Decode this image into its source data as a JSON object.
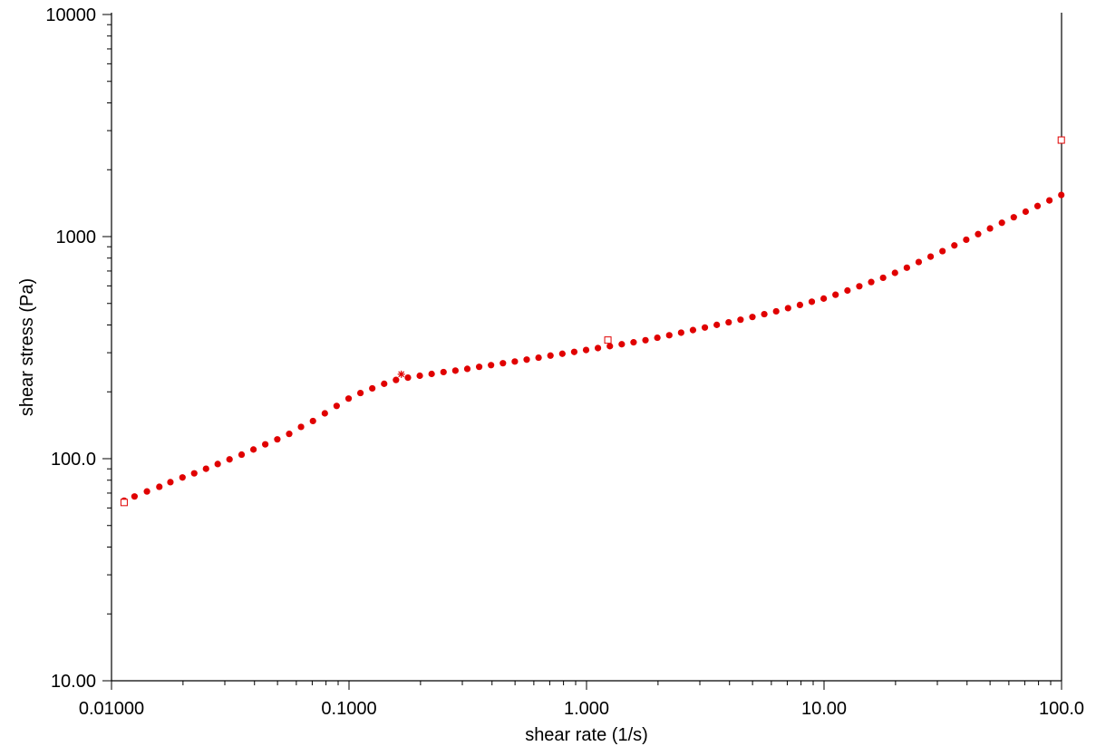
{
  "chart_data": {
    "type": "scatter",
    "title": "",
    "xlabel": "shear rate (1/s)",
    "ylabel": "shear stress (Pa)",
    "x_scale": "log",
    "y_scale": "log",
    "xlim": [
      0.01,
      100
    ],
    "ylim": [
      10,
      10000
    ],
    "x_tick_values": [
      0.01,
      0.1,
      1,
      10,
      100
    ],
    "x_tick_labels": [
      "0.01000",
      "0.1000",
      "1.000",
      "10.00",
      "100.0"
    ],
    "y_tick_values": [
      10,
      100,
      1000,
      10000
    ],
    "y_tick_labels": [
      "10.00",
      "100.0",
      "1000",
      "10000"
    ],
    "grid": false,
    "marker_color": "#e00000",
    "series": [
      {
        "values": [
          [
            0.0113,
            64.7
          ],
          [
            0.0125,
            67.6
          ],
          [
            0.0141,
            71.2
          ],
          [
            0.0159,
            74.7
          ],
          [
            0.0177,
            78.4
          ],
          [
            0.0199,
            82.3
          ],
          [
            0.0223,
            85.9
          ],
          [
            0.025,
            90.1
          ],
          [
            0.028,
            94.6
          ],
          [
            0.0314,
            99.3
          ],
          [
            0.0353,
            104.3
          ],
          [
            0.0396,
            110.0
          ],
          [
            0.0444,
            116.0
          ],
          [
            0.0499,
            122.2
          ],
          [
            0.056,
            129.3
          ],
          [
            0.0628,
            139.0
          ],
          [
            0.0705,
            147.8
          ],
          [
            0.0791,
            160.0
          ],
          [
            0.0887,
            172.8
          ],
          [
            0.0996,
            186.5
          ],
          [
            0.1117,
            197.5
          ],
          [
            0.1253,
            207.3
          ],
          [
            0.1406,
            217.4
          ],
          [
            0.1577,
            226.2
          ],
          [
            0.177,
            231.7
          ],
          [
            0.1986,
            236.3
          ],
          [
            0.2228,
            240.8
          ],
          [
            0.25,
            245.5
          ],
          [
            0.2805,
            249.2
          ],
          [
            0.3148,
            253.8
          ],
          [
            0.3532,
            259.1
          ],
          [
            0.3963,
            263.8
          ],
          [
            0.4447,
            269.1
          ],
          [
            0.499,
            273.8
          ],
          [
            0.5599,
            279.3
          ],
          [
            0.6282,
            285.0
          ],
          [
            0.7049,
            291.2
          ],
          [
            0.791,
            296.8
          ],
          [
            0.8875,
            302.5
          ],
          [
            0.9958,
            308.6
          ],
          [
            1.117,
            314.8
          ],
          [
            1.254,
            321.1
          ],
          [
            1.407,
            327.6
          ],
          [
            1.578,
            334.2
          ],
          [
            1.771,
            341.6
          ],
          [
            1.987,
            350.4
          ],
          [
            2.23,
            359.6
          ],
          [
            2.502,
            369.4
          ],
          [
            2.807,
            379.4
          ],
          [
            3.15,
            389.6
          ],
          [
            3.535,
            400.4
          ],
          [
            3.966,
            411.2
          ],
          [
            4.45,
            422.4
          ],
          [
            4.994,
            434.6
          ],
          [
            5.603,
            447.4
          ],
          [
            6.287,
            460.8
          ],
          [
            7.055,
            476.3
          ],
          [
            7.916,
            492.3
          ],
          [
            8.882,
            509.0
          ],
          [
            9.966,
            526.0
          ],
          [
            11.18,
            547.2
          ],
          [
            12.55,
            571.6
          ],
          [
            14.08,
            597.5
          ],
          [
            15.8,
            624.2
          ],
          [
            17.73,
            652.5
          ],
          [
            19.89,
            686.7
          ],
          [
            22.32,
            724.2
          ],
          [
            25.04,
            768.1
          ],
          [
            28.1,
            812.5
          ],
          [
            31.53,
            859.9
          ],
          [
            35.38,
            912.5
          ],
          [
            39.7,
            968.1
          ],
          [
            44.54,
            1026
          ],
          [
            49.98,
            1088
          ],
          [
            56.08,
            1154
          ],
          [
            62.93,
            1222
          ],
          [
            70.61,
            1295
          ],
          [
            79.23,
            1373
          ],
          [
            88.9,
            1455
          ],
          [
            99.75,
            1540
          ]
        ]
      }
    ],
    "special_markers": [
      {
        "shape": "square",
        "x": 0.0113,
        "y": 63.5
      },
      {
        "shape": "asterisk",
        "x": 0.166,
        "y": 240
      },
      {
        "shape": "square",
        "x": 1.23,
        "y": 342
      },
      {
        "shape": "square",
        "x": 99.75,
        "y": 2720
      }
    ]
  }
}
